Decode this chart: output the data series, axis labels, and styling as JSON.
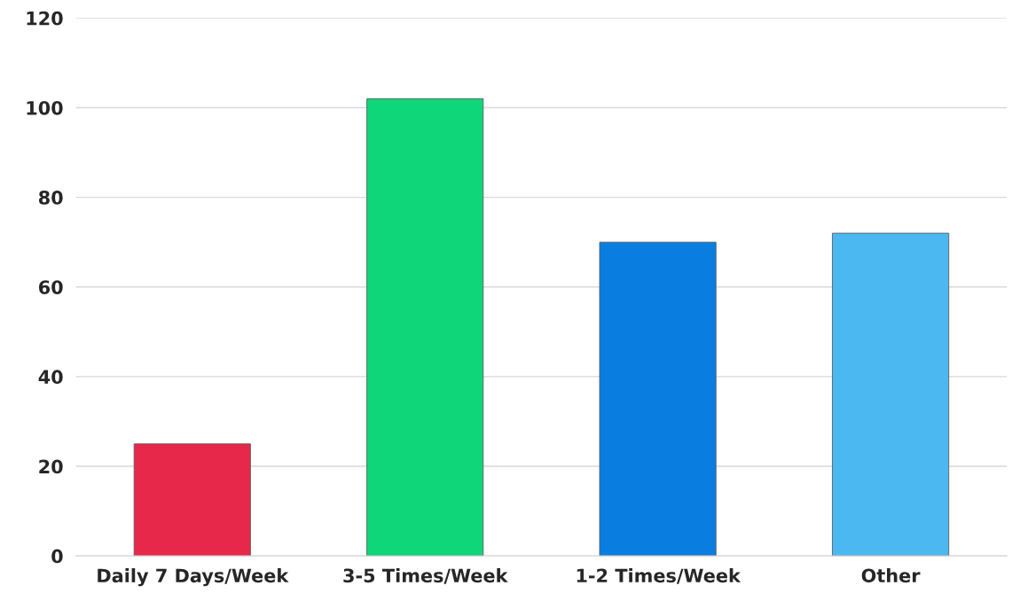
{
  "chart_data": {
    "type": "bar",
    "categories": [
      "Daily 7 Days/Week",
      "3-5 Times/Week",
      "1-2 Times/Week",
      "Other"
    ],
    "values": [
      25,
      102,
      70,
      72
    ],
    "colors": [
      "#e8284a",
      "#10d67a",
      "#0a7ee0",
      "#4cb8f2"
    ],
    "ylim": [
      0,
      120
    ],
    "yticks": [
      0,
      20,
      40,
      60,
      80,
      100,
      120
    ],
    "grid": "y"
  }
}
